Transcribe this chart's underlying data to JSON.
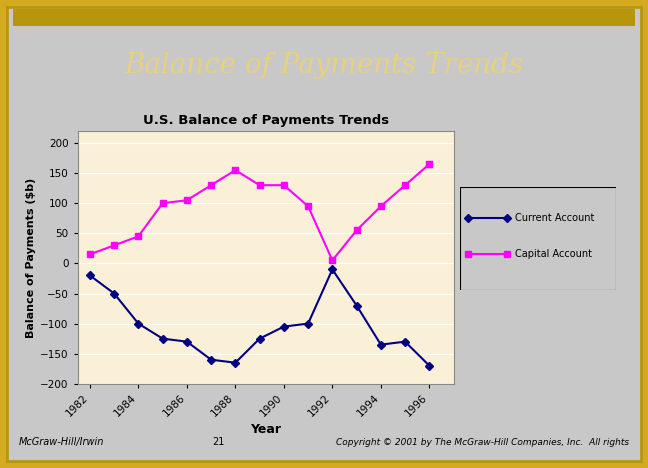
{
  "title_main": "Balance of Payments Trends",
  "title_main_color": "#e8d080",
  "title_main_bg": "#0a0a0a",
  "header_bar_color": "#b8960c",
  "chart_title": "U.S. Balance of Payments Trends",
  "xlabel": "Year",
  "ylabel": "Balance of Payments ($b)",
  "chart_bg": "#faf0d8",
  "slide_bg": "#c8c8c8",
  "inner_bg": "#e8e8e8",
  "years": [
    1982,
    1983,
    1984,
    1985,
    1986,
    1987,
    1988,
    1989,
    1990,
    1991,
    1992,
    1993,
    1994,
    1995,
    1996
  ],
  "current_account": [
    -20,
    -50,
    -100,
    -125,
    -130,
    -160,
    -165,
    -125,
    -105,
    -100,
    -10,
    -70,
    -135,
    -130,
    -170
  ],
  "capital_account": [
    15,
    30,
    45,
    100,
    105,
    130,
    155,
    130,
    130,
    95,
    5,
    55,
    95,
    130,
    165
  ],
  "current_color": "#000080",
  "capital_color": "#ff00ff",
  "ylim": [
    -200,
    220
  ],
  "yticks": [
    -200,
    -150,
    -100,
    -50,
    0,
    50,
    100,
    150,
    200
  ],
  "xtick_years": [
    1982,
    1984,
    1986,
    1988,
    1990,
    1992,
    1994,
    1996
  ],
  "footer_text_left": "McGraw-Hill/Irwin",
  "footer_text_center": "21",
  "footer_text_right": "Copyright © 2001 by The McGraw-Hill Companies, Inc.  All rights"
}
